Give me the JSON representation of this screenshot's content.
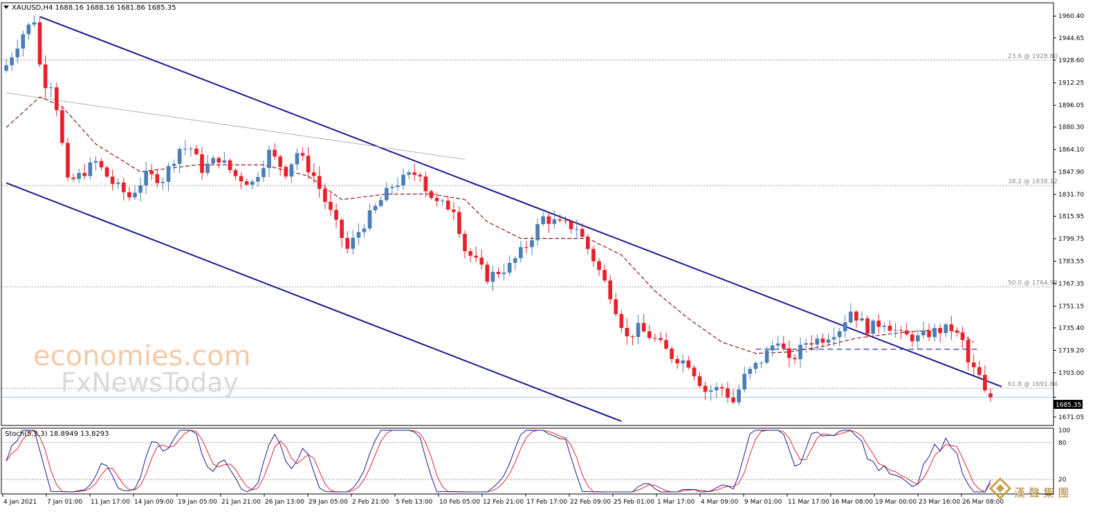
{
  "header": {
    "text": "XAUUSD,H4  1688.16 1688.16 1681.86 1685.35"
  },
  "price_badge": "1685.35",
  "stoch_label": "Stoch(5,3,3) 18.8949 13.8293",
  "watermark": {
    "line1": "economies.com",
    "line2": "FxNewsToday"
  },
  "logo_text": "漢 聲 集 團",
  "colors": {
    "bull": "#4a7fb5",
    "bear": "#e8202a",
    "channel": "#1a1a8c",
    "ma": "#8b1a1a",
    "gray_line": "#b0b0b0",
    "grid": "#9a9a9a"
  },
  "chart_data": {
    "type": "candlestick",
    "symbol": "XAUUSD",
    "timeframe": "H4",
    "ohlc_last": {
      "open": 1688.16,
      "high": 1688.16,
      "low": 1681.86,
      "close": 1685.35
    },
    "ylim": [
      1665,
      1970
    ],
    "y_ticks": [
      "1960.40",
      "1944.65",
      "1928.60",
      "1912.25",
      "1896.05",
      "1880.30",
      "1864.10",
      "1847.90",
      "1831.70",
      "1815.95",
      "1799.75",
      "1783.55",
      "1767.35",
      "1751.15",
      "1735.40",
      "1719.20",
      "1703.00",
      "1685.35",
      "1671.05"
    ],
    "x_ticks": [
      "4 Jan 2021",
      "7 Jan 01:00",
      "11 Jan 17:00",
      "14 Jan 09:00",
      "19 Jan 05:00",
      "21 Jan 21:00",
      "26 Jan 13:00",
      "29 Jan 05:00",
      "2 Feb 21:00",
      "5 Feb 13:00",
      "10 Feb 05:00",
      "12 Feb 21:00",
      "17 Feb 17:00",
      "22 Feb 09:00",
      "25 Feb 01:00",
      "1 Mar 17:00",
      "4 Mar 09:00",
      "9 Mar 01:00",
      "11 Mar 17:00",
      "16 Mar 08:00",
      "19 Mar 00:00",
      "23 Mar 16:00",
      "26 Mar 08:00"
    ],
    "fib_levels": [
      {
        "label": "23.6 @ 1928.60",
        "value": 1928.6
      },
      {
        "label": "38.2 @ 1838.12",
        "value": 1838.12
      },
      {
        "label": "50.0 @ 1764.98",
        "value": 1764.98
      },
      {
        "label": "61.8 @ 1691.84",
        "value": 1691.84
      }
    ],
    "close_path": [
      [
        0,
        1925
      ],
      [
        3,
        1948
      ],
      [
        5,
        1958
      ],
      [
        6,
        1925
      ],
      [
        7,
        1912
      ],
      [
        8,
        1912
      ],
      [
        9,
        1895
      ],
      [
        11,
        1840
      ],
      [
        13,
        1845
      ],
      [
        16,
        1855
      ],
      [
        19,
        1840
      ],
      [
        22,
        1830
      ],
      [
        25,
        1845
      ],
      [
        28,
        1843
      ],
      [
        31,
        1865
      ],
      [
        33,
        1865
      ],
      [
        35,
        1850
      ],
      [
        38,
        1858
      ],
      [
        41,
        1845
      ],
      [
        44,
        1840
      ],
      [
        47,
        1862
      ],
      [
        50,
        1848
      ],
      [
        52,
        1862
      ],
      [
        55,
        1845
      ],
      [
        57,
        1827
      ],
      [
        61,
        1792
      ],
      [
        63,
        1805
      ],
      [
        66,
        1822
      ],
      [
        69,
        1838
      ],
      [
        72,
        1845
      ],
      [
        74,
        1848
      ],
      [
        75,
        1836
      ],
      [
        77,
        1825
      ],
      [
        80,
        1822
      ],
      [
        82,
        1792
      ],
      [
        84,
        1783
      ],
      [
        86,
        1772
      ],
      [
        90,
        1780
      ],
      [
        93,
        1795
      ],
      [
        96,
        1815
      ],
      [
        99,
        1810
      ],
      [
        102,
        1808
      ],
      [
        105,
        1785
      ],
      [
        108,
        1760
      ],
      [
        111,
        1728
      ],
      [
        113,
        1735
      ],
      [
        116,
        1727
      ],
      [
        119,
        1715
      ],
      [
        122,
        1710
      ],
      [
        125,
        1690
      ],
      [
        128,
        1692
      ],
      [
        130,
        1682
      ],
      [
        132,
        1700
      ],
      [
        135,
        1712
      ],
      [
        138,
        1728
      ],
      [
        140,
        1710
      ],
      [
        143,
        1725
      ],
      [
        146,
        1728
      ],
      [
        149,
        1735
      ],
      [
        151,
        1748
      ],
      [
        154,
        1735
      ],
      [
        157,
        1740
      ],
      [
        160,
        1730
      ],
      [
        163,
        1728
      ],
      [
        166,
        1733
      ],
      [
        169,
        1735
      ],
      [
        171,
        1725
      ],
      [
        172,
        1710
      ],
      [
        174,
        1700
      ],
      [
        175,
        1688
      ],
      [
        176,
        1685.35
      ]
    ],
    "moving_average": {
      "style": "dashed",
      "points": [
        [
          0,
          1880
        ],
        [
          6,
          1902
        ],
        [
          10,
          1895
        ],
        [
          16,
          1868
        ],
        [
          24,
          1848
        ],
        [
          34,
          1853
        ],
        [
          46,
          1853
        ],
        [
          54,
          1845
        ],
        [
          60,
          1828
        ],
        [
          68,
          1832
        ],
        [
          76,
          1832
        ],
        [
          82,
          1828
        ],
        [
          86,
          1812
        ],
        [
          92,
          1800
        ],
        [
          98,
          1800
        ],
        [
          104,
          1800
        ],
        [
          110,
          1788
        ],
        [
          116,
          1762
        ],
        [
          122,
          1742
        ],
        [
          128,
          1725
        ],
        [
          134,
          1717
        ],
        [
          140,
          1718
        ],
        [
          146,
          1722
        ],
        [
          152,
          1728
        ],
        [
          160,
          1732
        ],
        [
          166,
          1734
        ],
        [
          170,
          1733
        ],
        [
          173,
          1725
        ]
      ]
    },
    "channel": {
      "upper": [
        [
          6,
          1960
        ],
        [
          178,
          1693
        ]
      ],
      "lower": [
        [
          0,
          1840
        ],
        [
          110,
          1668
        ]
      ]
    },
    "gray_trendline": [
      [
        0,
        1905
      ],
      [
        82,
        1857
      ]
    ],
    "horizontal_dash": {
      "value": 1720,
      "from": 134,
      "to": 174
    },
    "stochastic": {
      "params": "5,3,3",
      "main": 18.8949,
      "signal": 13.8293,
      "levels": [
        80,
        20
      ],
      "range": [
        0,
        100
      ]
    }
  }
}
